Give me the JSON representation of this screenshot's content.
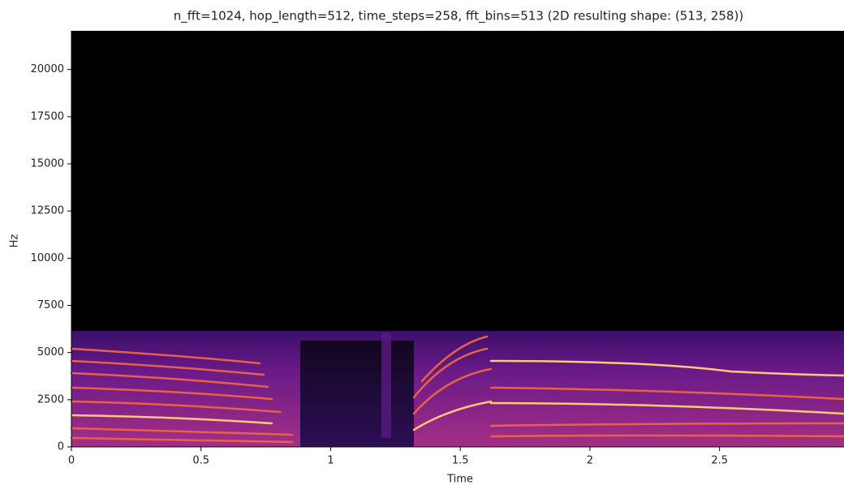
{
  "chart_data": {
    "type": "spectrogram",
    "title": "n_fft=1024,  hop_length=512,  time_steps=258,  fft_bins=513  (2D resulting shape: (513, 258))",
    "x_label": "Time",
    "y_label": "Hz",
    "xlim": [
      0,
      2.98
    ],
    "xticks": [
      0,
      0.5,
      1,
      1.5,
      2,
      2.5
    ],
    "ylim": [
      0,
      22050
    ],
    "yticks": [
      0,
      2500,
      5000,
      7500,
      10000,
      12500,
      15000,
      17500,
      20000
    ]
  }
}
